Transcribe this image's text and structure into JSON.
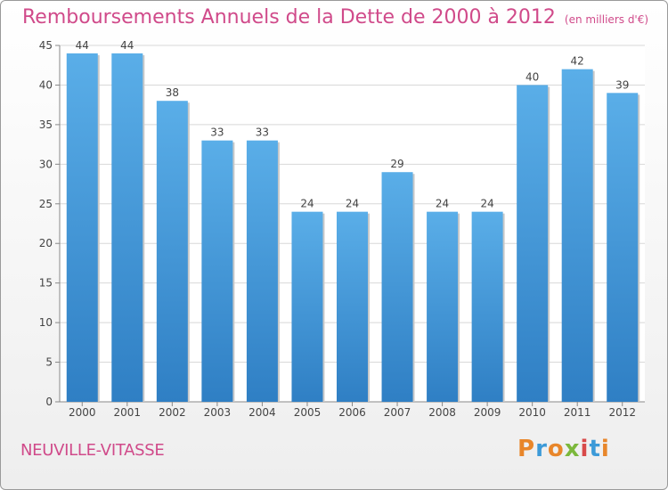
{
  "title": "Remboursements Annuels de la Dette de 2000 à 2012",
  "unit_note": "(en milliers d'€)",
  "commune": "NEUVILLE-VITASSE",
  "logo_text": "Proxiti",
  "colors": {
    "bar_top": "#5aaee8",
    "bar_bottom": "#2f7fc4",
    "title": "#d04a8a"
  },
  "chart_data": {
    "type": "bar",
    "title": "Remboursements Annuels de la Dette de 2000 à 2012",
    "categories": [
      "2000",
      "2001",
      "2002",
      "2003",
      "2004",
      "2005",
      "2006",
      "2007",
      "2008",
      "2009",
      "2010",
      "2011",
      "2012"
    ],
    "values": [
      44,
      44,
      38,
      33,
      33,
      24,
      24,
      29,
      24,
      24,
      40,
      42,
      39
    ],
    "ylim": [
      0,
      45
    ],
    "yticks": [
      0,
      5,
      10,
      15,
      20,
      25,
      30,
      35,
      40,
      45
    ],
    "grid": true,
    "data_labels": true
  }
}
